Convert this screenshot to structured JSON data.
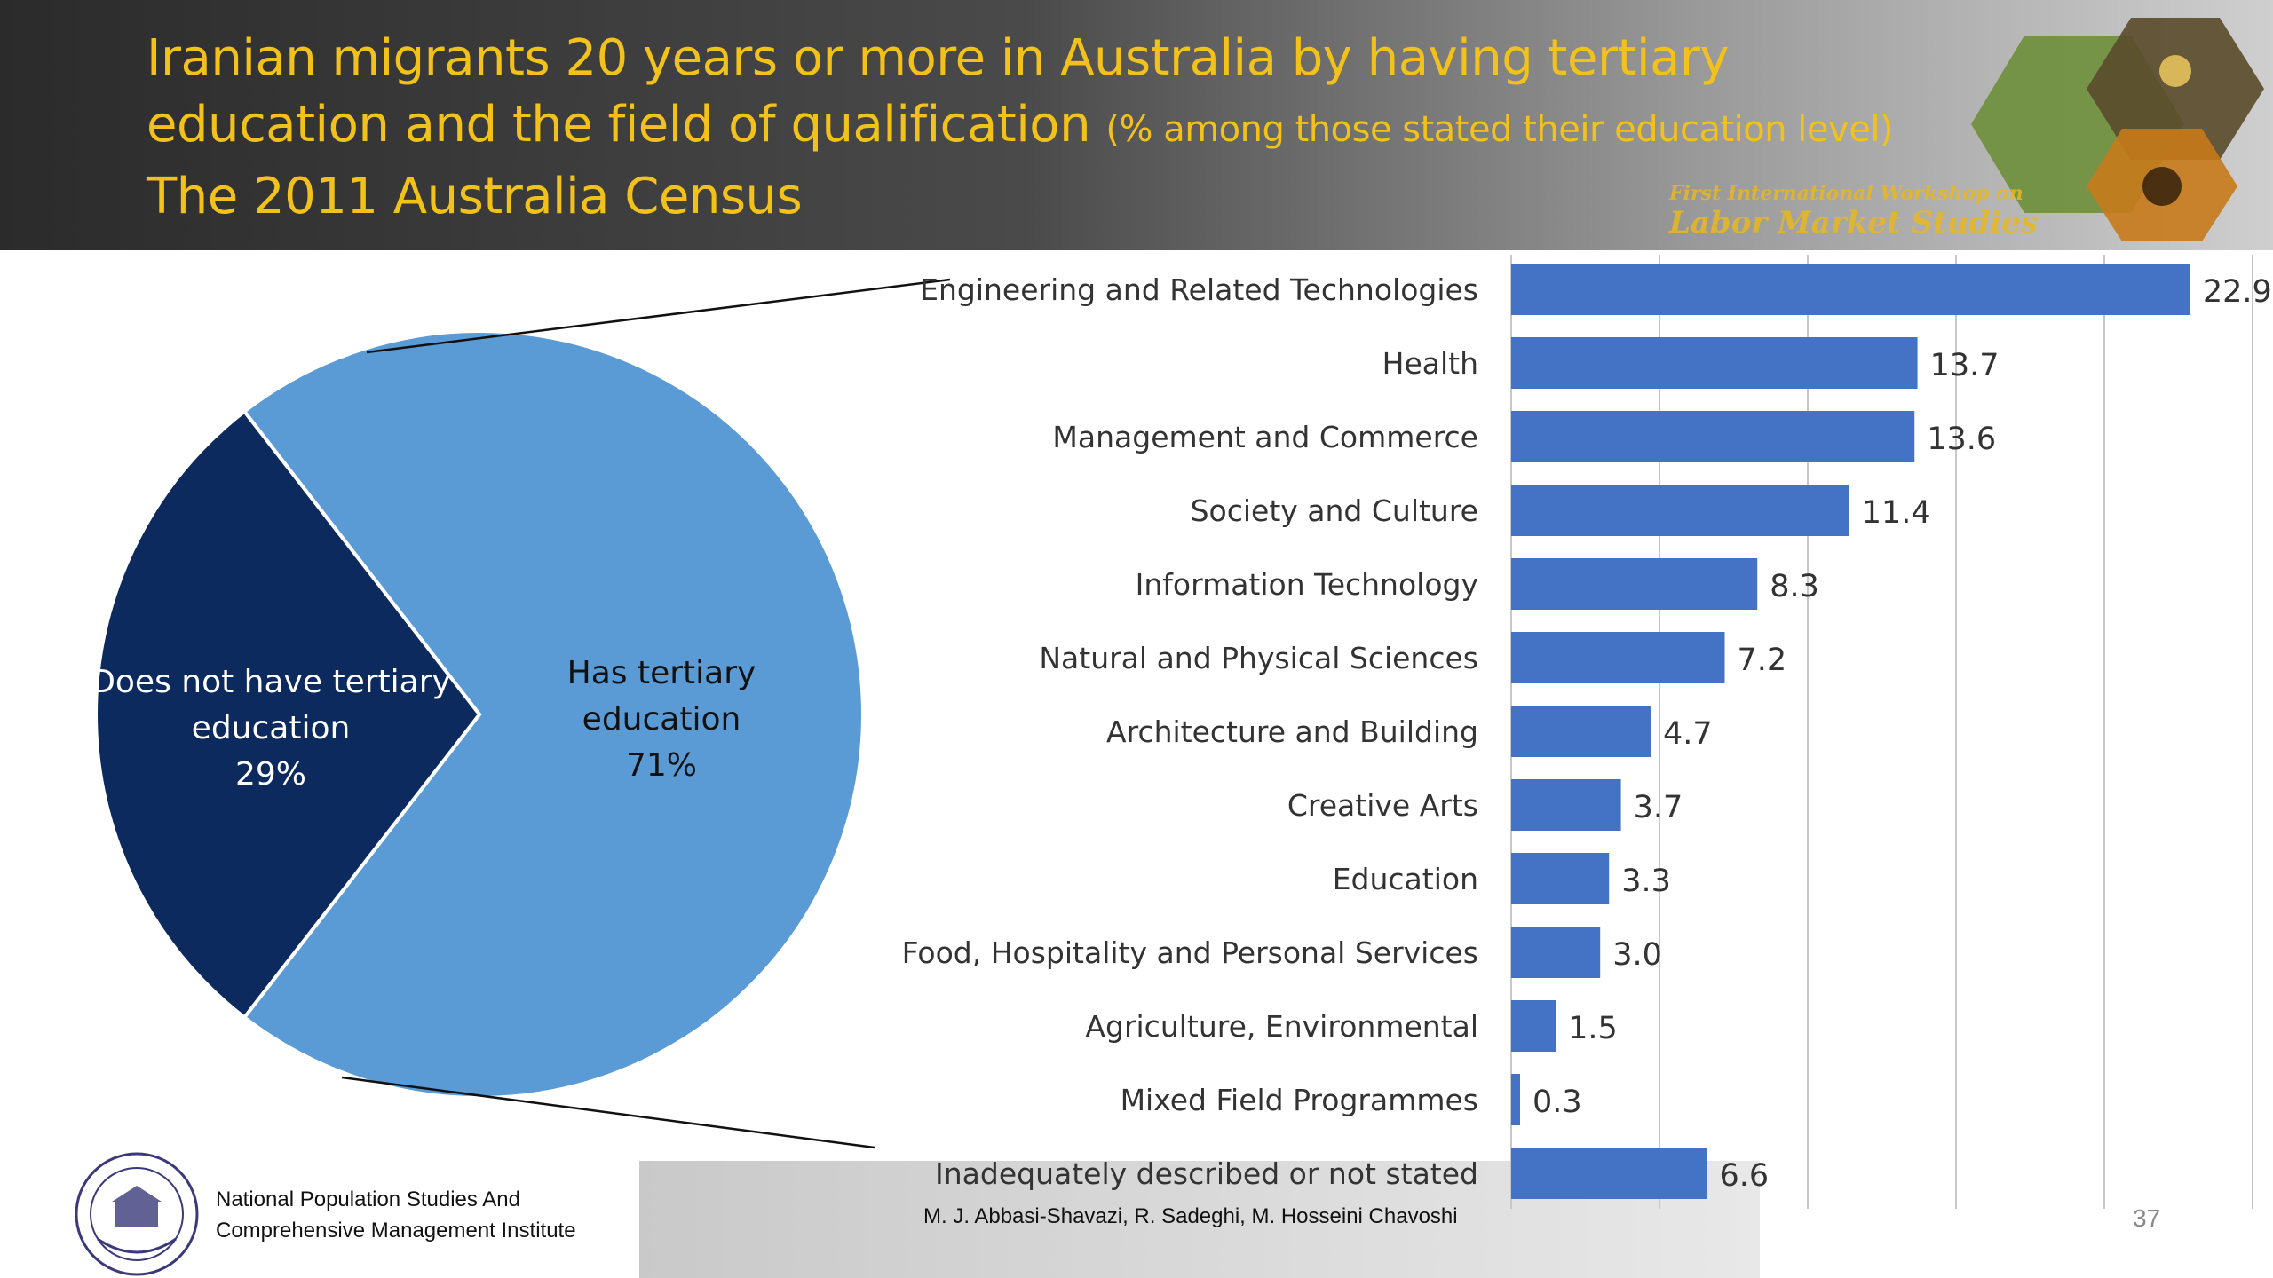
{
  "title": {
    "line1": "Iranian migrants 20 years or more in Australia by having tertiary",
    "line2_main": "education and the field of qualification ",
    "line2_note": "(% among those stated their education level)",
    "line3": "The 2011 Australia Census"
  },
  "workshop": {
    "line1": "First International Workshop on",
    "line2": "Labor Market Studies"
  },
  "footer": {
    "institute_line1": "National Population Studies And",
    "institute_line2": "Comprehensive Management Institute",
    "authors": "M. J. Abbasi-Shavazi, R. Sadeghi, M. Hosseini Chavoshi",
    "page_number": "37"
  },
  "colors": {
    "title": "#f2c21b",
    "pie_has": "#5b9bd5",
    "pie_not": "#0c2a5e",
    "bar": "#4472c4"
  },
  "chart_data": [
    {
      "type": "pie",
      "slices": [
        {
          "label_line1": "Has tertiary",
          "label_line2": "education",
          "value_label": "71%",
          "value": 71
        },
        {
          "label_line1": "Does not have tertiary",
          "label_line2": "education",
          "value_label": "29%",
          "value": 29
        }
      ]
    },
    {
      "type": "bar",
      "orientation": "horizontal",
      "categories": [
        "Engineering and Related Technologies",
        "Health",
        "Management and Commerce",
        "Society and Culture",
        "Information Technology",
        "Natural and Physical Sciences",
        "Architecture and Building",
        "Creative Arts",
        "Education",
        "Food, Hospitality and Personal Services",
        "Agriculture, Environmental",
        "Mixed Field Programmes",
        "Inadequately described or not stated"
      ],
      "values": [
        22.9,
        13.7,
        13.6,
        11.4,
        8.3,
        7.2,
        4.7,
        3.7,
        3.3,
        3.0,
        1.5,
        0.3,
        6.6
      ],
      "value_labels": [
        "22.9",
        "13.7",
        "13.6",
        "11.4",
        "8.3",
        "7.2",
        "4.7",
        "3.7",
        "3.3",
        "3.0",
        "1.5",
        "0.3",
        "6.6"
      ],
      "xlim": [
        0,
        25
      ],
      "grid": true
    }
  ]
}
